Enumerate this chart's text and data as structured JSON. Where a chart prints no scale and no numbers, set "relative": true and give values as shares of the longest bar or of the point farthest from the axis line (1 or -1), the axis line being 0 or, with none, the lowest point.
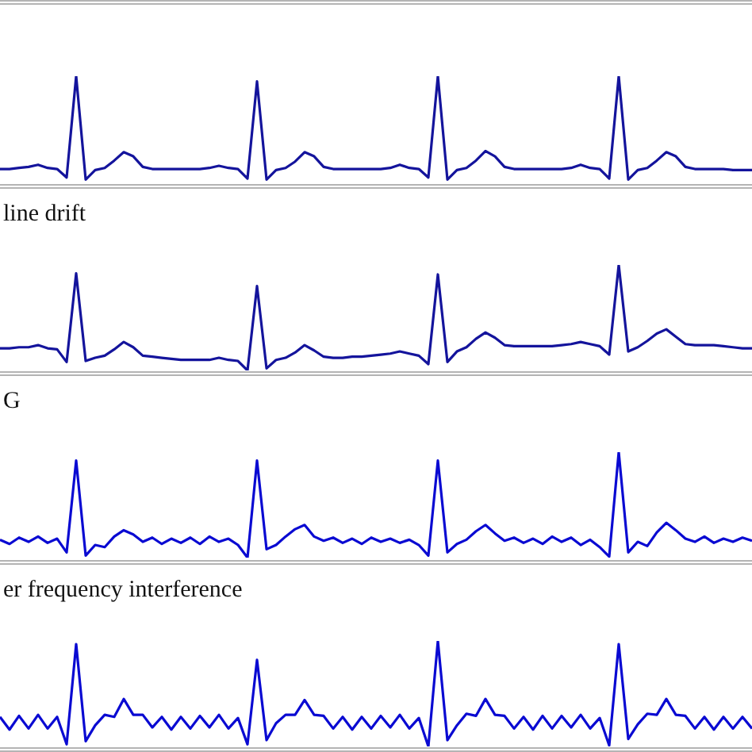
{
  "chart_data": [
    {
      "type": "line",
      "relative": true,
      "categories": [
        null,
        null,
        null,
        null,
        null,
        null,
        null,
        null,
        null,
        null,
        null,
        null,
        null,
        null,
        null,
        null,
        null,
        null,
        null,
        null,
        null,
        null,
        null,
        null,
        null,
        null,
        null,
        null,
        null,
        null,
        null,
        null,
        null,
        null,
        null,
        null,
        null,
        null,
        null,
        null,
        null,
        null,
        null,
        null,
        null,
        null,
        null,
        null,
        null,
        null,
        null,
        null,
        null,
        null,
        null,
        null,
        null,
        null,
        null,
        null,
        null,
        null,
        null,
        null,
        null,
        null,
        null,
        null,
        null,
        null,
        null,
        null,
        null,
        null,
        null,
        null,
        null,
        null,
        null,
        null
      ],
      "series": [
        {
          "color": "#14149c",
          "values": [
            0.12,
            0.12,
            0.13,
            0.14,
            0.16,
            0.13,
            0.12,
            0.04,
            1,
            0.02,
            0.11,
            0.13,
            0.2,
            0.28,
            0.24,
            0.14,
            0.12,
            0.12,
            0.12,
            0.12,
            0.12,
            0.12,
            0.13,
            0.15,
            0.13,
            0.12,
            0.03,
            0.95,
            0.02,
            0.11,
            0.13,
            0.19,
            0.28,
            0.24,
            0.14,
            0.12,
            0.12,
            0.12,
            0.12,
            0.12,
            0.12,
            0.13,
            0.16,
            0.13,
            0.12,
            0.04,
            1,
            0.02,
            0.11,
            0.13,
            0.2,
            0.29,
            0.24,
            0.14,
            0.12,
            0.12,
            0.12,
            0.12,
            0.12,
            0.12,
            0.13,
            0.16,
            0.13,
            0.12,
            0.03,
            1,
            0.02,
            0.11,
            0.13,
            0.2,
            0.28,
            0.24,
            0.14,
            0.12,
            0.12,
            0.12,
            0.12,
            0.11,
            0.11,
            0.11
          ]
        }
      ]
    },
    {
      "type": "line",
      "relative": true,
      "title": "line drift",
      "categories": [
        null,
        null,
        null,
        null,
        null,
        null,
        null,
        null,
        null,
        null,
        null,
        null,
        null,
        null,
        null,
        null,
        null,
        null,
        null,
        null,
        null,
        null,
        null,
        null,
        null,
        null,
        null,
        null,
        null,
        null,
        null,
        null,
        null,
        null,
        null,
        null,
        null,
        null,
        null,
        null,
        null,
        null,
        null,
        null,
        null,
        null,
        null,
        null,
        null,
        null,
        null,
        null,
        null,
        null,
        null,
        null,
        null,
        null,
        null,
        null,
        null,
        null,
        null,
        null,
        null,
        null,
        null,
        null,
        null,
        null,
        null,
        null,
        null,
        null,
        null,
        null,
        null,
        null,
        null,
        null
      ],
      "series": [
        {
          "color": "#14149c",
          "values": [
            0.21,
            0.21,
            0.22,
            0.22,
            0.24,
            0.21,
            0.2,
            0.08,
            0.92,
            0.09,
            0.12,
            0.14,
            0.2,
            0.27,
            0.22,
            0.14,
            0.13,
            0.12,
            0.11,
            0.1,
            0.1,
            0.1,
            0.1,
            0.12,
            0.1,
            0.09,
            0,
            0.8,
            0.02,
            0.1,
            0.12,
            0.17,
            0.24,
            0.19,
            0.13,
            0.12,
            0.12,
            0.13,
            0.13,
            0.14,
            0.15,
            0.16,
            0.18,
            0.16,
            0.14,
            0.06,
            0.91,
            0.08,
            0.18,
            0.22,
            0.3,
            0.36,
            0.31,
            0.24,
            0.23,
            0.23,
            0.23,
            0.23,
            0.23,
            0.24,
            0.25,
            0.27,
            0.25,
            0.23,
            0.15,
            1,
            0.18,
            0.22,
            0.28,
            0.35,
            0.39,
            0.32,
            0.25,
            0.24,
            0.24,
            0.24,
            0.23,
            0.22,
            0.21,
            0.21
          ]
        }
      ]
    },
    {
      "type": "line",
      "relative": true,
      "title": "G",
      "categories": [
        null,
        null,
        null,
        null,
        null,
        null,
        null,
        null,
        null,
        null,
        null,
        null,
        null,
        null,
        null,
        null,
        null,
        null,
        null,
        null,
        null,
        null,
        null,
        null,
        null,
        null,
        null,
        null,
        null,
        null,
        null,
        null,
        null,
        null,
        null,
        null,
        null,
        null,
        null,
        null,
        null,
        null,
        null,
        null,
        null,
        null,
        null,
        null,
        null,
        null,
        null,
        null,
        null,
        null,
        null,
        null,
        null,
        null,
        null,
        null,
        null,
        null,
        null,
        null,
        null,
        null,
        null,
        null,
        null,
        null,
        null,
        null,
        null,
        null,
        null,
        null,
        null,
        null,
        null,
        null
      ],
      "series": [
        {
          "color": "#0a0ad2",
          "values": [
            0.17,
            0.13,
            0.19,
            0.15,
            0.2,
            0.14,
            0.18,
            0.05,
            0.92,
            0.02,
            0.12,
            0.1,
            0.2,
            0.26,
            0.22,
            0.15,
            0.19,
            0.13,
            0.18,
            0.14,
            0.19,
            0.13,
            0.2,
            0.15,
            0.18,
            0.12,
            0,
            0.92,
            0.08,
            0.12,
            0.2,
            0.27,
            0.31,
            0.2,
            0.16,
            0.19,
            0.14,
            0.18,
            0.13,
            0.19,
            0.15,
            0.18,
            0.14,
            0.17,
            0.12,
            0.02,
            0.92,
            0.05,
            0.13,
            0.17,
            0.25,
            0.31,
            0.23,
            0.16,
            0.19,
            0.14,
            0.18,
            0.13,
            0.2,
            0.15,
            0.19,
            0.12,
            0.17,
            0.1,
            0.01,
            1,
            0.05,
            0.15,
            0.11,
            0.24,
            0.33,
            0.26,
            0.18,
            0.15,
            0.2,
            0.14,
            0.18,
            0.15,
            0.19,
            0.16
          ]
        }
      ]
    },
    {
      "type": "line",
      "relative": true,
      "title": "er frequency interference",
      "categories": [
        null,
        null,
        null,
        null,
        null,
        null,
        null,
        null,
        null,
        null,
        null,
        null,
        null,
        null,
        null,
        null,
        null,
        null,
        null,
        null,
        null,
        null,
        null,
        null,
        null,
        null,
        null,
        null,
        null,
        null,
        null,
        null,
        null,
        null,
        null,
        null,
        null,
        null,
        null,
        null,
        null,
        null,
        null,
        null,
        null,
        null,
        null,
        null,
        null,
        null,
        null,
        null,
        null,
        null,
        null,
        null,
        null,
        null,
        null,
        null,
        null,
        null,
        null,
        null,
        null,
        null,
        null,
        null,
        null,
        null,
        null,
        null,
        null,
        null,
        null,
        null,
        null,
        null,
        null,
        null
      ],
      "series": [
        {
          "color": "#0a0ad2",
          "values": [
            0.28,
            0.16,
            0.29,
            0.17,
            0.3,
            0.17,
            0.28,
            0.02,
            0.97,
            0.05,
            0.2,
            0.3,
            0.28,
            0.45,
            0.3,
            0.3,
            0.18,
            0.28,
            0.16,
            0.28,
            0.17,
            0.29,
            0.18,
            0.3,
            0.17,
            0.27,
            0.02,
            0.82,
            0.06,
            0.22,
            0.3,
            0.3,
            0.44,
            0.3,
            0.29,
            0.17,
            0.28,
            0.16,
            0.28,
            0.17,
            0.29,
            0.18,
            0.3,
            0.17,
            0.27,
            0,
            1,
            0.06,
            0.2,
            0.31,
            0.29,
            0.45,
            0.3,
            0.29,
            0.17,
            0.28,
            0.16,
            0.29,
            0.17,
            0.29,
            0.18,
            0.3,
            0.17,
            0.27,
            0.01,
            0.97,
            0.07,
            0.21,
            0.31,
            0.3,
            0.45,
            0.3,
            0.29,
            0.17,
            0.28,
            0.16,
            0.28,
            0.17,
            0.28,
            0.17
          ]
        }
      ]
    }
  ]
}
